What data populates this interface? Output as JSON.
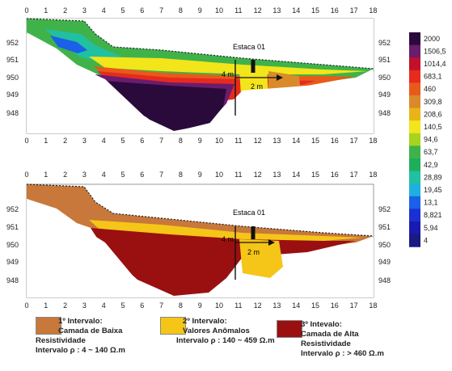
{
  "sections": [
    {
      "id": "top",
      "x_ticks": [
        "0",
        "1",
        "2",
        "3",
        "4",
        "5",
        "6",
        "7",
        "8",
        "9",
        "10",
        "11",
        "12",
        "13",
        "14",
        "15",
        "16",
        "17",
        "18"
      ],
      "x_ticks_bottom": [
        "0",
        "1",
        "2",
        "3",
        "4",
        "5",
        "6",
        "7",
        "8",
        "9",
        "10",
        "11",
        "12",
        "13",
        "14",
        "15",
        "16",
        "17",
        "18"
      ],
      "y_ticks_left": [
        "952",
        "951",
        "950",
        "949",
        "948"
      ],
      "y_ticks_right": [
        "952",
        "951",
        "950",
        "949",
        "948"
      ],
      "stake_label": "Estaca 01",
      "depth_label": "4 m",
      "width_label": "2 m"
    },
    {
      "id": "bottom",
      "x_ticks": [
        "0",
        "1",
        "2",
        "3",
        "4",
        "5",
        "6",
        "7",
        "8",
        "9",
        "10",
        "11",
        "12",
        "13",
        "14",
        "15",
        "16",
        "17",
        "18"
      ],
      "x_ticks_bottom": [
        "0",
        "1",
        "2",
        "3",
        "4",
        "5",
        "6",
        "7",
        "8",
        "9",
        "10",
        "11",
        "12",
        "13",
        "14",
        "15",
        "16",
        "17",
        "18"
      ],
      "y_ticks_left": [
        "952",
        "951",
        "950",
        "949",
        "948"
      ],
      "y_ticks_right": [
        "952",
        "951",
        "950",
        "949",
        "948"
      ],
      "stake_label": "Estaca 01",
      "depth_label": "4 m",
      "width_label": "2 m"
    }
  ],
  "scale": [
    {
      "value": "2000",
      "color": "#2a0a3a"
    },
    {
      "value": "1506,5",
      "color": "#6a1c6e"
    },
    {
      "value": "1014,4",
      "color": "#c0102a"
    },
    {
      "value": "683,1",
      "color": "#e62a1e"
    },
    {
      "value": "460",
      "color": "#e85a1a"
    },
    {
      "value": "309,8",
      "color": "#d98a2a"
    },
    {
      "value": "208,6",
      "color": "#e8b418"
    },
    {
      "value": "140,5",
      "color": "#f2e51a"
    },
    {
      "value": "94,6",
      "color": "#a8d41e"
    },
    {
      "value": "63,7",
      "color": "#3fb34a"
    },
    {
      "value": "42,9",
      "color": "#1fae5a"
    },
    {
      "value": "28,89",
      "color": "#20c0a0"
    },
    {
      "value": "19,45",
      "color": "#20b0e0"
    },
    {
      "value": "13,1",
      "color": "#1a60e8"
    },
    {
      "value": "8,821",
      "color": "#1a30d0"
    },
    {
      "value": "5,94",
      "color": "#1a1ab0"
    },
    {
      "value": "4",
      "color": "#1a1a80"
    }
  ],
  "legend": [
    {
      "color": "#c8783a",
      "line1": "1º Intervalo:",
      "line2": "Camada de Baixa",
      "line3": "Resistividade",
      "line4": "Intervalo ρ : 4 ~ 140 Ω.m"
    },
    {
      "color": "#f5c518",
      "line1": "2º Intervalo:",
      "line2": "Valores Anômalos",
      "line3": "Intervalo ρ : 140 ~ 459 Ω.m",
      "line4": ""
    },
    {
      "color": "#9a1010",
      "line1": "3º Intevalo:",
      "line2": "Camada de Alta",
      "line3": "Resistividade",
      "line4": "Intervalo ρ : > 460 Ω.m"
    }
  ]
}
